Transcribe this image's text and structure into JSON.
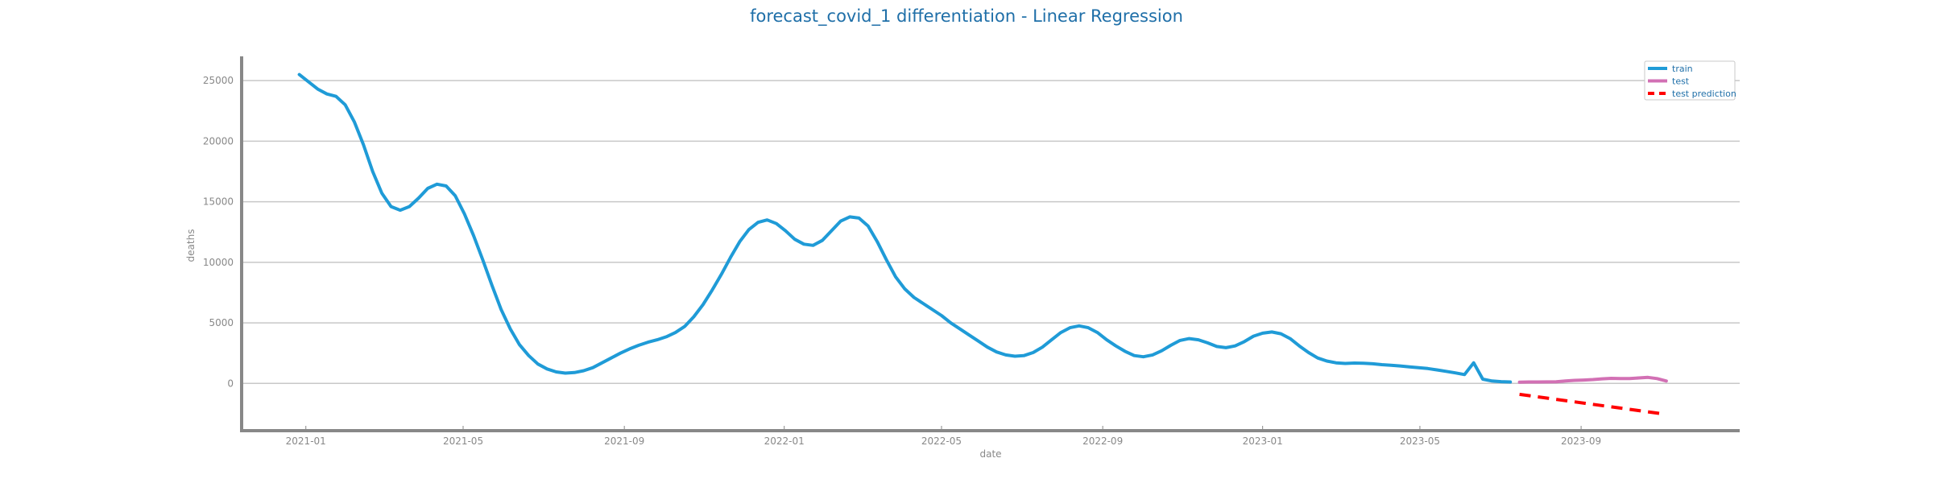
{
  "chart_data": {
    "type": "line",
    "title": "forecast_covid_1 differentiation - Linear Regression",
    "xlabel": "date",
    "ylabel": "deaths",
    "x_ticks": [
      "2021-01",
      "2021-05",
      "2021-09",
      "2022-01",
      "2022-05",
      "2022-09",
      "2023-01",
      "2023-05",
      "2023-09"
    ],
    "y_ticks": [
      "0",
      "5000",
      "10000",
      "15000",
      "20000",
      "25000"
    ],
    "ylim": [
      -3900,
      27000
    ],
    "xlim": [
      "2020-11-13",
      "2023-12-31"
    ],
    "grid": "horizontal",
    "legend_position": "top-right",
    "colors": {
      "train": "#1f9bd7",
      "test": "#d270b4",
      "test prediction": "#ff0000",
      "title": "#1f6fa8"
    },
    "series": [
      {
        "name": "train",
        "style": "solid",
        "color": "#1f9bd7",
        "points": [
          [
            "2020-12-27",
            25500
          ],
          [
            "2021-01-03",
            24900
          ],
          [
            "2021-01-10",
            24300
          ],
          [
            "2021-01-17",
            23900
          ],
          [
            "2021-01-24",
            23700
          ],
          [
            "2021-01-31",
            23000
          ],
          [
            "2021-02-07",
            21600
          ],
          [
            "2021-02-14",
            19700
          ],
          [
            "2021-02-21",
            17500
          ],
          [
            "2021-02-28",
            15700
          ],
          [
            "2021-03-07",
            14600
          ],
          [
            "2021-03-14",
            14300
          ],
          [
            "2021-03-21",
            14600
          ],
          [
            "2021-03-28",
            15300
          ],
          [
            "2021-04-04",
            16100
          ],
          [
            "2021-04-11",
            16450
          ],
          [
            "2021-04-18",
            16300
          ],
          [
            "2021-04-25",
            15500
          ],
          [
            "2021-05-02",
            14000
          ],
          [
            "2021-05-09",
            12200
          ],
          [
            "2021-05-16",
            10200
          ],
          [
            "2021-05-23",
            8100
          ],
          [
            "2021-05-30",
            6100
          ],
          [
            "2021-06-06",
            4500
          ],
          [
            "2021-06-13",
            3200
          ],
          [
            "2021-06-20",
            2300
          ],
          [
            "2021-06-27",
            1600
          ],
          [
            "2021-07-04",
            1200
          ],
          [
            "2021-07-11",
            950
          ],
          [
            "2021-07-18",
            850
          ],
          [
            "2021-07-25",
            900
          ],
          [
            "2021-08-01",
            1050
          ],
          [
            "2021-08-08",
            1300
          ],
          [
            "2021-08-15",
            1700
          ],
          [
            "2021-08-22",
            2100
          ],
          [
            "2021-08-29",
            2500
          ],
          [
            "2021-09-05",
            2850
          ],
          [
            "2021-09-12",
            3150
          ],
          [
            "2021-09-19",
            3400
          ],
          [
            "2021-09-26",
            3600
          ],
          [
            "2021-10-03",
            3850
          ],
          [
            "2021-10-10",
            4200
          ],
          [
            "2021-10-17",
            4700
          ],
          [
            "2021-10-24",
            5500
          ],
          [
            "2021-10-31",
            6500
          ],
          [
            "2021-11-07",
            7700
          ],
          [
            "2021-11-14",
            9000
          ],
          [
            "2021-11-21",
            10400
          ],
          [
            "2021-11-28",
            11700
          ],
          [
            "2021-12-05",
            12700
          ],
          [
            "2021-12-12",
            13300
          ],
          [
            "2021-12-19",
            13500
          ],
          [
            "2021-12-26",
            13200
          ],
          [
            "2022-01-02",
            12600
          ],
          [
            "2022-01-09",
            11900
          ],
          [
            "2022-01-16",
            11500
          ],
          [
            "2022-01-23",
            11400
          ],
          [
            "2022-01-30",
            11800
          ],
          [
            "2022-02-06",
            12600
          ],
          [
            "2022-02-13",
            13400
          ],
          [
            "2022-02-20",
            13750
          ],
          [
            "2022-02-27",
            13650
          ],
          [
            "2022-03-06",
            13000
          ],
          [
            "2022-03-13",
            11700
          ],
          [
            "2022-03-20",
            10200
          ],
          [
            "2022-03-27",
            8800
          ],
          [
            "2022-04-03",
            7800
          ],
          [
            "2022-04-10",
            7100
          ],
          [
            "2022-04-17",
            6600
          ],
          [
            "2022-04-24",
            6100
          ],
          [
            "2022-05-01",
            5600
          ],
          [
            "2022-05-08",
            5000
          ],
          [
            "2022-05-15",
            4500
          ],
          [
            "2022-05-22",
            4000
          ],
          [
            "2022-05-29",
            3500
          ],
          [
            "2022-06-05",
            3000
          ],
          [
            "2022-06-12",
            2600
          ],
          [
            "2022-06-19",
            2350
          ],
          [
            "2022-06-26",
            2250
          ],
          [
            "2022-07-03",
            2300
          ],
          [
            "2022-07-10",
            2550
          ],
          [
            "2022-07-17",
            3000
          ],
          [
            "2022-07-24",
            3600
          ],
          [
            "2022-07-31",
            4200
          ],
          [
            "2022-08-07",
            4600
          ],
          [
            "2022-08-14",
            4750
          ],
          [
            "2022-08-21",
            4600
          ],
          [
            "2022-08-28",
            4200
          ],
          [
            "2022-09-04",
            3600
          ],
          [
            "2022-09-11",
            3100
          ],
          [
            "2022-09-18",
            2650
          ],
          [
            "2022-09-25",
            2300
          ],
          [
            "2022-10-02",
            2200
          ],
          [
            "2022-10-09",
            2350
          ],
          [
            "2022-10-16",
            2700
          ],
          [
            "2022-10-23",
            3150
          ],
          [
            "2022-10-30",
            3550
          ],
          [
            "2022-11-06",
            3700
          ],
          [
            "2022-11-13",
            3600
          ],
          [
            "2022-11-20",
            3350
          ],
          [
            "2022-11-27",
            3050
          ],
          [
            "2022-12-04",
            2950
          ],
          [
            "2022-12-11",
            3100
          ],
          [
            "2022-12-18",
            3450
          ],
          [
            "2022-12-25",
            3900
          ],
          [
            "2023-01-01",
            4150
          ],
          [
            "2023-01-08",
            4250
          ],
          [
            "2023-01-15",
            4100
          ],
          [
            "2023-01-22",
            3700
          ],
          [
            "2023-01-29",
            3100
          ],
          [
            "2023-02-05",
            2550
          ],
          [
            "2023-02-12",
            2100
          ],
          [
            "2023-02-19",
            1850
          ],
          [
            "2023-02-26",
            1700
          ],
          [
            "2023-03-05",
            1650
          ],
          [
            "2023-03-12",
            1680
          ],
          [
            "2023-03-19",
            1660
          ],
          [
            "2023-03-26",
            1620
          ],
          [
            "2023-04-02",
            1550
          ],
          [
            "2023-04-09",
            1500
          ],
          [
            "2023-04-16",
            1440
          ],
          [
            "2023-04-23",
            1370
          ],
          [
            "2023-04-30",
            1300
          ],
          [
            "2023-05-07",
            1230
          ],
          [
            "2023-05-14",
            1120
          ],
          [
            "2023-05-21",
            1000
          ],
          [
            "2023-05-28",
            870
          ],
          [
            "2023-06-04",
            730
          ],
          [
            "2023-06-11",
            1700
          ],
          [
            "2023-06-18",
            350
          ],
          [
            "2023-06-25",
            200
          ],
          [
            "2023-07-02",
            150
          ],
          [
            "2023-07-09",
            120
          ]
        ]
      },
      {
        "name": "test",
        "style": "solid",
        "color": "#d270b4",
        "points": [
          [
            "2023-07-16",
            100
          ],
          [
            "2023-07-23",
            120
          ],
          [
            "2023-07-30",
            120
          ],
          [
            "2023-08-06",
            130
          ],
          [
            "2023-08-13",
            140
          ],
          [
            "2023-08-20",
            200
          ],
          [
            "2023-08-27",
            250
          ],
          [
            "2023-09-03",
            280
          ],
          [
            "2023-09-10",
            320
          ],
          [
            "2023-09-17",
            380
          ],
          [
            "2023-09-24",
            420
          ],
          [
            "2023-10-01",
            400
          ],
          [
            "2023-10-08",
            400
          ],
          [
            "2023-10-15",
            450
          ],
          [
            "2023-10-22",
            500
          ],
          [
            "2023-10-29",
            400
          ],
          [
            "2023-11-05",
            200
          ]
        ]
      },
      {
        "name": "test prediction",
        "style": "dashed",
        "color": "#ff0000",
        "points": [
          [
            "2023-07-16",
            -900
          ],
          [
            "2023-11-05",
            -2550
          ]
        ]
      }
    ]
  }
}
